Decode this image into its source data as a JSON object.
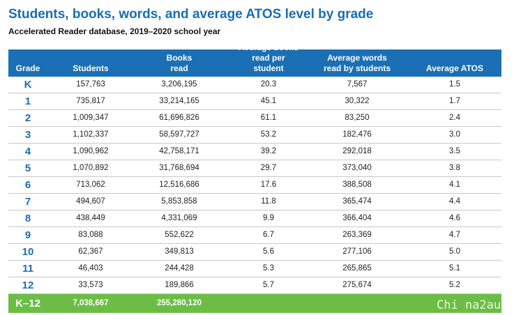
{
  "title": "Students, books, words, and average ATOS level by grade",
  "subtitle": "Accelerated Reader database, 2019–2020 school year",
  "columns": {
    "grade": "Grade",
    "students": "Students",
    "books_line1": "Books",
    "books_line2": "read",
    "bps_line1": "Average books",
    "bps_line2": "read per student",
    "wps_line1": "Average words",
    "wps_line2": "read by students",
    "atos": "Average ATOS"
  },
  "rows": [
    {
      "grade": "K",
      "students": "157,763",
      "books": "3,206,195",
      "bps": "20.3",
      "wps": "7,567",
      "atos": "1.5"
    },
    {
      "grade": "1",
      "students": "735,817",
      "books": "33,214,165",
      "bps": "45.1",
      "wps": "30,322",
      "atos": "1.7"
    },
    {
      "grade": "2",
      "students": "1,009,347",
      "books": "61,696,826",
      "bps": "61.1",
      "wps": "83,250",
      "atos": "2.4"
    },
    {
      "grade": "3",
      "students": "1,102,337",
      "books": "58,597,727",
      "bps": "53.2",
      "wps": "182,476",
      "atos": "3.0"
    },
    {
      "grade": "4",
      "students": "1,090,962",
      "books": "42,758,171",
      "bps": "39.2",
      "wps": "292,018",
      "atos": "3.5"
    },
    {
      "grade": "5",
      "students": "1,070,892",
      "books": "31,768,694",
      "bps": "29.7",
      "wps": "373,040",
      "atos": "3.8"
    },
    {
      "grade": "6",
      "students": "713,062",
      "books": "12,516,686",
      "bps": "17.6",
      "wps": "388,508",
      "atos": "4.1"
    },
    {
      "grade": "7",
      "students": "494,607",
      "books": "5,853,858",
      "bps": "11.8",
      "wps": "365,474",
      "atos": "4.4"
    },
    {
      "grade": "8",
      "students": "438,449",
      "books": "4,331,069",
      "bps": "9.9",
      "wps": "366,404",
      "atos": "4.6"
    },
    {
      "grade": "9",
      "students": "83,088",
      "books": "552,622",
      "bps": "6.7",
      "wps": "263,369",
      "atos": "4.7"
    },
    {
      "grade": "10",
      "students": "62,367",
      "books": "349,813",
      "bps": "5.6",
      "wps": "277,106",
      "atos": "5.0"
    },
    {
      "grade": "11",
      "students": "46,403",
      "books": "244,428",
      "bps": "5.3",
      "wps": "265,865",
      "atos": "5.1"
    },
    {
      "grade": "12",
      "students": "33,573",
      "books": "189,866",
      "bps": "5.7",
      "wps": "275,674",
      "atos": "5.2"
    }
  ],
  "total": {
    "grade": "K–12",
    "students": "7,038,667",
    "books": "255,280,120"
  },
  "watermark": "Chi na2au",
  "colors": {
    "header_bg": "#1b6fb5",
    "title": "#1a6db3",
    "total_bg": "#6cbd45",
    "row_border": "#c8c8c8"
  }
}
